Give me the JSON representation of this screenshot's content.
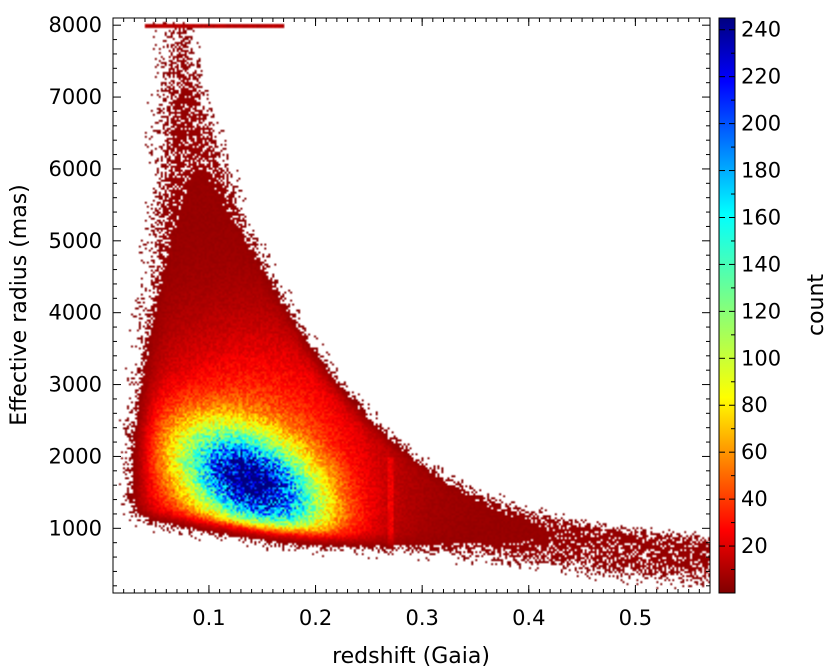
{
  "chart_data": {
    "type": "heatmap",
    "title": "",
    "xlabel": "redshift (Gaia)",
    "ylabel": "Effective radius (mas)",
    "colorbar_label": "count",
    "xlim": [
      0.01,
      0.57
    ],
    "ylim": [
      100,
      8100
    ],
    "x_ticks": [
      0.1,
      0.2,
      0.3,
      0.4,
      0.5
    ],
    "x_tick_labels": [
      "0.1",
      "0.2",
      "0.3",
      "0.4",
      "0.5"
    ],
    "y_ticks": [
      1000,
      2000,
      3000,
      4000,
      5000,
      6000,
      7000,
      8000
    ],
    "y_tick_labels": [
      "1000",
      "2000",
      "3000",
      "4000",
      "5000",
      "6000",
      "7000",
      "8000"
    ],
    "colorbar_range": [
      0,
      245
    ],
    "colorbar_ticks": [
      20,
      40,
      60,
      80,
      100,
      120,
      140,
      160,
      180,
      200,
      220,
      240
    ],
    "colorbar_tick_labels": [
      "20",
      "40",
      "60",
      "80",
      "100",
      "120",
      "140",
      "160",
      "180",
      "200",
      "220",
      "240"
    ],
    "colormap": "jet_r",
    "density_peak": {
      "x": 0.14,
      "y": 1650,
      "count": 245
    },
    "grid": false,
    "legend": "none"
  }
}
